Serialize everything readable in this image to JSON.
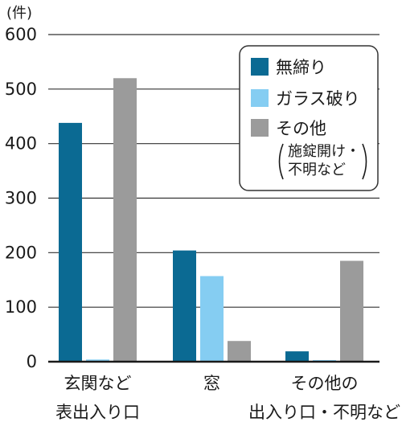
{
  "chart_data": {
    "type": "bar",
    "y_unit_label": "(件)",
    "categories": [
      [
        "玄関など",
        "表出入り口"
      ],
      [
        "窓"
      ],
      [
        "その他の",
        "出入り口・不明など"
      ]
    ],
    "series": [
      {
        "name": "無締り",
        "values": [
          438,
          204,
          19
        ],
        "color": "#0b6a93"
      },
      {
        "name": "ガラス破り",
        "values": [
          4,
          157,
          3
        ],
        "color": "#85cdf2"
      },
      {
        "name": "その他",
        "name_note": [
          "施錠開け・",
          "不明など"
        ],
        "values": [
          520,
          38,
          185
        ],
        "color": "#9b9b9b"
      }
    ],
    "ylim": [
      0,
      600
    ],
    "yticks": [
      0,
      100,
      200,
      300,
      400,
      500,
      600
    ],
    "grid": true,
    "legend_position": "top-right"
  }
}
